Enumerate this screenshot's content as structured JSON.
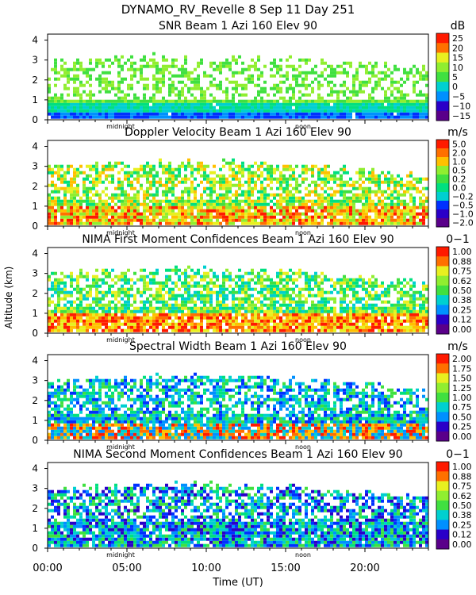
{
  "title_line1": "DYNAMO_RV_Revelle    8 Sep 11 Day 251",
  "ylabel": "Altitude (km)",
  "xlabel": "Time (UT)",
  "x_ticks": [
    "00:00",
    "05:00",
    "10:00",
    "15:00",
    "20:00"
  ],
  "marker_labels": {
    "midnight": "midnight",
    "noon": "noon"
  },
  "colors": {
    "palette": [
      "#5a008a",
      "#2a00c8",
      "#0030ff",
      "#0090ff",
      "#00d0d0",
      "#00e080",
      "#40e040",
      "#90ee30",
      "#e8f020",
      "#ffc000",
      "#ff7000",
      "#ff1a00"
    ]
  },
  "chart_data": [
    {
      "type": "heatmap",
      "title": "SNR Beam 1 Azi 160 Elev 90",
      "unit": "dB",
      "colorbar_ticks": [
        "25",
        "20",
        "15",
        "10",
        "5",
        "0",
        "−5",
        "−10",
        "−15"
      ],
      "y_ticks": [
        "0",
        "1",
        "2",
        "3",
        "4"
      ],
      "ylim": [
        0,
        4.3
      ],
      "xlim": [
        "00:00",
        "24:00"
      ],
      "echo_top_km": [
        2.3,
        2.6,
        3.0,
        3.2
      ],
      "grid": false
    },
    {
      "type": "heatmap",
      "title": "Doppler Velocity Beam 1 Azi 160 Elev 90",
      "unit": "m/s",
      "colorbar_ticks": [
        "5.0",
        "2.0",
        "1.0",
        "0.5",
        "0.2",
        "0.0",
        "−0.2",
        "−0.5",
        "−1.0",
        "−2.0"
      ],
      "y_ticks": [
        "0",
        "1",
        "2",
        "3",
        "4"
      ],
      "ylim": [
        0,
        4.3
      ],
      "xlim": [
        "00:00",
        "24:00"
      ],
      "grid": false
    },
    {
      "type": "heatmap",
      "title": "NIMA First Moment Confidences Beam 1 Azi 160 Elev 90",
      "unit": "0−1",
      "colorbar_ticks": [
        "1.00",
        "0.88",
        "0.75",
        "0.62",
        "0.50",
        "0.38",
        "0.25",
        "0.12",
        "0.00"
      ],
      "y_ticks": [
        "0",
        "1",
        "2",
        "3",
        "4"
      ],
      "ylim": [
        0,
        4.3
      ],
      "xlim": [
        "00:00",
        "24:00"
      ],
      "grid": false
    },
    {
      "type": "heatmap",
      "title": "Spectral Width Beam 1 Azi 160 Elev 90",
      "unit": "m/s",
      "colorbar_ticks": [
        "2.00",
        "1.75",
        "1.50",
        "1.25",
        "1.00",
        "0.75",
        "0.50",
        "0.25",
        "0.00"
      ],
      "y_ticks": [
        "0",
        "1",
        "2",
        "3",
        "4"
      ],
      "ylim": [
        0,
        4.3
      ],
      "xlim": [
        "00:00",
        "24:00"
      ],
      "grid": false
    },
    {
      "type": "heatmap",
      "title": "NIMA Second Moment Confidences Beam 1 Azi 160 Elev 90",
      "unit": "0−1",
      "colorbar_ticks": [
        "1.00",
        "0.88",
        "0.75",
        "0.62",
        "0.50",
        "0.38",
        "0.25",
        "0.12",
        "0.00"
      ],
      "y_ticks": [
        "0",
        "1",
        "2",
        "3",
        "4"
      ],
      "ylim": [
        0,
        4.3
      ],
      "xlim": [
        "00:00",
        "24:00"
      ],
      "grid": false
    }
  ]
}
